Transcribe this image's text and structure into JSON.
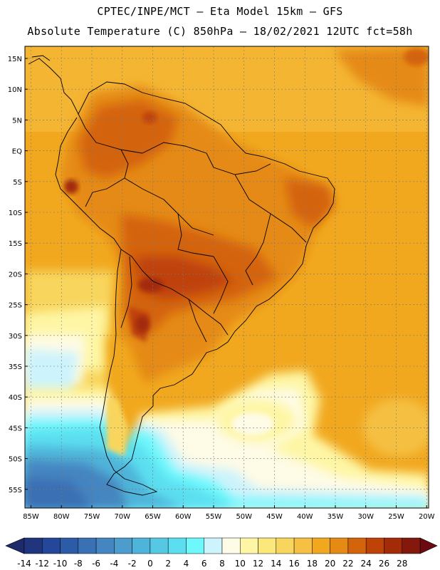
{
  "title_line1": "CPTEC/INPE/MCT  –   Eta Model 15km  –  GFS",
  "title_line2": "Absolute Temperature (C) 850hPa – 18/02/2021 12UTC fct=58h",
  "lat_labels": [
    "15N",
    "10N",
    "5N",
    "EQ",
    "5S",
    "10S",
    "15S",
    "20S",
    "25S",
    "30S",
    "35S",
    "40S",
    "45S",
    "50S",
    "55S"
  ],
  "lon_labels": [
    "85W",
    "80W",
    "75W",
    "70W",
    "65W",
    "60W",
    "55W",
    "50W",
    "45W",
    "40W",
    "35W",
    "30W",
    "25W",
    "20W"
  ],
  "colorbar": {
    "labels": [
      "-14",
      "-12",
      "-10",
      "-8",
      "-6",
      "-4",
      "-2",
      "0",
      "2",
      "4",
      "6",
      "8",
      "10",
      "12",
      "14",
      "16",
      "18",
      "20",
      "22",
      "24",
      "26",
      "28"
    ],
    "colors": [
      "#20357e",
      "#24479a",
      "#2c5ca8",
      "#3a70b4",
      "#4585c0",
      "#4c9ccd",
      "#4fb4d9",
      "#55c9e4",
      "#5bdff0",
      "#6ef8fc",
      "#cdf3fc",
      "#fefbe6",
      "#fef6a4",
      "#fbe77a",
      "#f8d65d",
      "#f5c043",
      "#f1a81f",
      "#e58a14",
      "#d4640b",
      "#bf4207",
      "#a32b07",
      "#84180c"
    ],
    "under_color": "#1e2a6b",
    "over_color": "#6c0a12"
  }
}
